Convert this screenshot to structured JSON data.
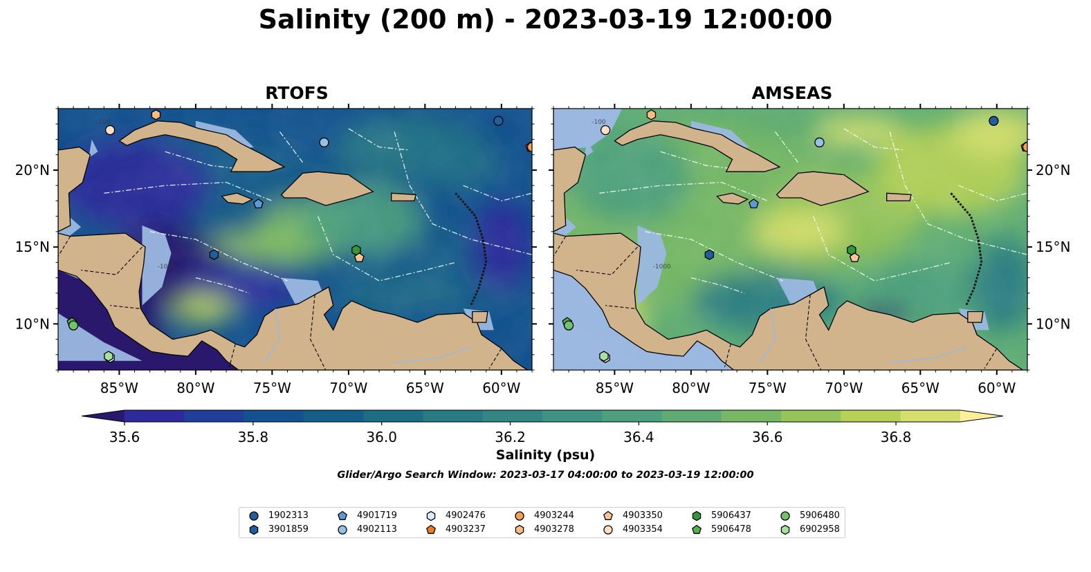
{
  "title": "Salinity (200 m) - 2023-03-19 12:00:00",
  "panels": [
    {
      "id": "rtofs",
      "title": "RTOFS"
    },
    {
      "id": "amseas",
      "title": "AMSEAS"
    }
  ],
  "lon_ticks": [
    "85°W",
    "80°W",
    "75°W",
    "70°W",
    "65°W",
    "60°W"
  ],
  "lat_ticks": [
    "20°N",
    "15°N",
    "10°N"
  ],
  "map_extent": {
    "lon": [
      -89,
      -58
    ],
    "lat": [
      7,
      24
    ]
  },
  "bathymetry_contour_labels": [
    "-100",
    "-1000"
  ],
  "colorbar": {
    "label": "Salinity (psu)",
    "ticks": [
      "35.6",
      "35.8",
      "36.0",
      "36.2",
      "36.4",
      "36.6",
      "36.8"
    ],
    "range": [
      35.55,
      36.95
    ],
    "extend": "both",
    "colormap": "haline",
    "colors": [
      "#2a186c",
      "#2e2a9b",
      "#1f3f9b",
      "#14528f",
      "#155e8a",
      "#1d6d87",
      "#287a85",
      "#338684",
      "#3f9383",
      "#4da07e",
      "#5eac73",
      "#78b865",
      "#97c45a",
      "#b7d157",
      "#d6df6c",
      "#fdee99"
    ]
  },
  "search_window": "Glider/Argo Search Window: 2023-03-17 04:00:00 to 2023-03-19 12:00:00",
  "legend": {
    "entries": [
      {
        "id": "1902313",
        "shape": "circle",
        "color": "#1f5fa0",
        "lon": -60.2,
        "lat": 23.2
      },
      {
        "id": "3901859",
        "shape": "hexagon",
        "color": "#1f5fa0",
        "lon": -78.8,
        "lat": 14.5
      },
      {
        "id": "4901719",
        "shape": "pentagon",
        "color": "#5b9bd5",
        "lon": -75.9,
        "lat": 17.8
      },
      {
        "id": "4902113",
        "shape": "circle",
        "color": "#93c4e6",
        "lon": -71.6,
        "lat": 21.8
      },
      {
        "id": "4902476",
        "shape": "hexagon",
        "color": "#d6ecfa",
        "lon": -85.6,
        "lat": 7.8
      },
      {
        "id": "4903237",
        "shape": "pentagon",
        "color": "#f07c1a",
        "lon": -58.1,
        "lat": 21.5
      },
      {
        "id": "4903244",
        "shape": "circle",
        "color": "#f5a052",
        "lon": -58.0,
        "lat": 21.5
      },
      {
        "id": "4903278",
        "shape": "hexagon",
        "color": "#f9bd80",
        "lon": -82.6,
        "lat": 23.6
      },
      {
        "id": "4903350",
        "shape": "pentagon",
        "color": "#f9c595",
        "lon": -69.3,
        "lat": 14.3
      },
      {
        "id": "4903354",
        "shape": "circle",
        "color": "#fde0c8",
        "lon": -85.6,
        "lat": 22.6
      },
      {
        "id": "5906437",
        "shape": "hexagon",
        "color": "#2f9a36",
        "lon": -69.5,
        "lat": 14.8
      },
      {
        "id": "5906478",
        "shape": "pentagon",
        "color": "#55b24d",
        "lon": -88.1,
        "lat": 10.1
      },
      {
        "id": "5906480",
        "shape": "circle",
        "color": "#72c46a",
        "lon": -88.0,
        "lat": 9.9
      },
      {
        "id": "6902958",
        "shape": "hexagon",
        "color": "#a8e0a0",
        "lon": -85.7,
        "lat": 7.9
      }
    ]
  }
}
